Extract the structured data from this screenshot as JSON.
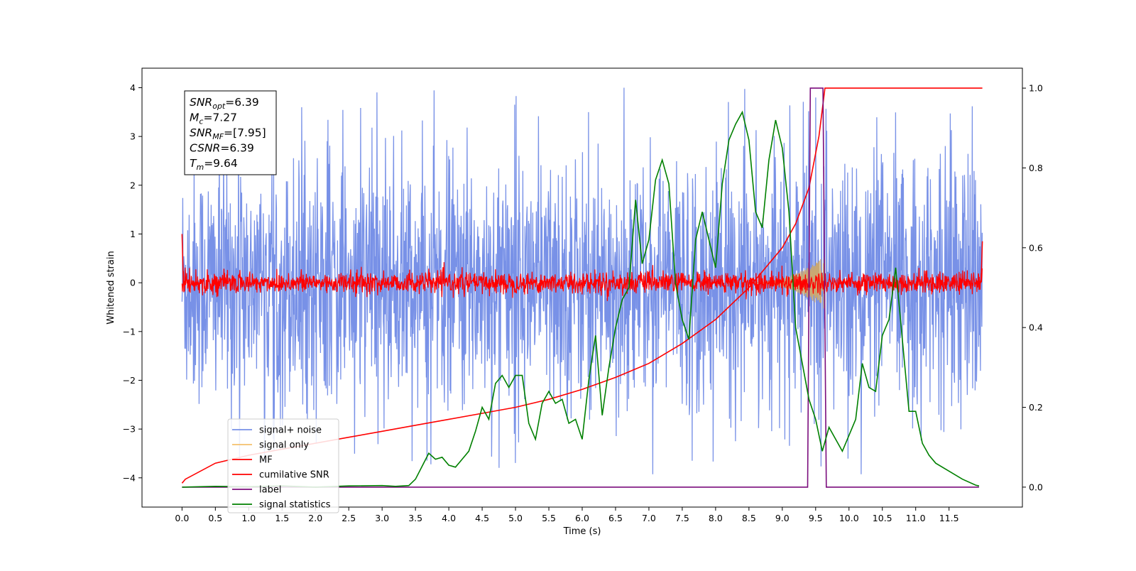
{
  "chart_data": {
    "type": "line",
    "xlabel": "Time (s)",
    "ylabel": "Whitened strain",
    "y2label": "",
    "xlim": [
      -0.6,
      12.6
    ],
    "ylim": [
      -4.6,
      4.4
    ],
    "y2lim": [
      -0.05,
      1.05
    ],
    "x_ticks": [
      "0.0",
      "0.5",
      "1.0",
      "1.5",
      "2.0",
      "2.5",
      "3.0",
      "3.5",
      "4.0",
      "4.5",
      "5.0",
      "5.5",
      "6.0",
      "6.5",
      "7.0",
      "7.5",
      "8.0",
      "8.5",
      "9.0",
      "9.5",
      "10.0",
      "10.5",
      "11.0",
      "11.5"
    ],
    "y_ticks": [
      "4",
      "3",
      "2",
      "1",
      "0",
      "−1",
      "−2",
      "−3",
      "−4"
    ],
    "y2_ticks": [
      "1.0",
      "0.8",
      "0.6",
      "0.4",
      "0.2",
      "0.0"
    ],
    "legend_position": "lower-left",
    "series": [
      {
        "name": "signal+ noise",
        "color": "#7891e7",
        "axis": "left",
        "style": "noise band",
        "t_range": [
          0,
          12
        ],
        "approx_abs_extreme": 4.0
      },
      {
        "name": "signal only",
        "color": "#f5c16d",
        "axis": "left",
        "style": "chirp envelope",
        "peak_time": 9.64,
        "peak_amplitude": 0.55
      },
      {
        "name": "MF",
        "color": "#ff0000",
        "axis": "left",
        "style": "noise band",
        "t_range": [
          0,
          12
        ],
        "approx_abs_extreme": 0.45
      },
      {
        "name": "cumilative SNR",
        "color": "#ff0000",
        "axis": "right",
        "x": [
          0.0,
          0.05,
          0.5,
          1.0,
          1.5,
          2.0,
          2.5,
          3.0,
          3.5,
          4.0,
          4.5,
          5.0,
          5.5,
          6.0,
          6.5,
          7.0,
          7.5,
          8.0,
          8.5,
          9.0,
          9.2,
          9.4,
          9.55,
          9.64,
          10.0,
          10.5,
          11.0,
          11.5,
          12.0
        ],
        "values": [
          0.01,
          0.02,
          0.06,
          0.08,
          0.095,
          0.11,
          0.125,
          0.14,
          0.155,
          0.17,
          0.185,
          0.2,
          0.22,
          0.245,
          0.275,
          0.31,
          0.36,
          0.42,
          0.5,
          0.6,
          0.66,
          0.75,
          0.88,
          1.0,
          1.0,
          1.0,
          1.0,
          1.0,
          1.0
        ]
      },
      {
        "name": "label",
        "color": "#7b0d7d",
        "axis": "right",
        "x": [
          0.0,
          9.38,
          9.42,
          9.61,
          9.66,
          11.95
        ],
        "values": [
          0.0,
          0.0,
          1.0,
          1.0,
          0.0,
          0.0
        ]
      },
      {
        "name": "signal statistics",
        "color": "#008000",
        "axis": "right",
        "x": [
          0.0,
          0.5,
          1.0,
          1.5,
          2.0,
          2.5,
          3.0,
          3.2,
          3.4,
          3.5,
          3.7,
          3.8,
          3.9,
          4.0,
          4.1,
          4.2,
          4.3,
          4.4,
          4.5,
          4.6,
          4.7,
          4.8,
          4.9,
          5.0,
          5.1,
          5.2,
          5.3,
          5.4,
          5.5,
          5.6,
          5.7,
          5.8,
          5.9,
          6.0,
          6.1,
          6.2,
          6.3,
          6.4,
          6.5,
          6.6,
          6.7,
          6.8,
          6.9,
          7.0,
          7.1,
          7.2,
          7.3,
          7.4,
          7.5,
          7.6,
          7.7,
          7.8,
          7.9,
          8.0,
          8.1,
          8.2,
          8.3,
          8.4,
          8.5,
          8.6,
          8.7,
          8.8,
          8.9,
          9.0,
          9.1,
          9.2,
          9.3,
          9.4,
          9.5,
          9.6,
          9.7,
          9.8,
          9.9,
          10.0,
          10.1,
          10.2,
          10.3,
          10.4,
          10.5,
          10.6,
          10.7,
          10.8,
          10.9,
          11.0,
          11.1,
          11.2,
          11.3,
          11.5,
          11.7,
          11.9,
          11.95
        ],
        "values": [
          0.0,
          0.002,
          0.001,
          0.003,
          0.0,
          0.003,
          0.004,
          0.002,
          0.004,
          0.02,
          0.085,
          0.07,
          0.075,
          0.055,
          0.05,
          0.07,
          0.09,
          0.14,
          0.2,
          0.17,
          0.26,
          0.28,
          0.25,
          0.28,
          0.28,
          0.16,
          0.12,
          0.21,
          0.24,
          0.21,
          0.22,
          0.16,
          0.17,
          0.12,
          0.27,
          0.38,
          0.18,
          0.3,
          0.4,
          0.47,
          0.5,
          0.72,
          0.56,
          0.62,
          0.77,
          0.82,
          0.76,
          0.51,
          0.42,
          0.37,
          0.62,
          0.69,
          0.62,
          0.55,
          0.76,
          0.87,
          0.91,
          0.94,
          0.87,
          0.69,
          0.65,
          0.82,
          0.92,
          0.85,
          0.69,
          0.4,
          0.31,
          0.22,
          0.17,
          0.09,
          0.15,
          0.12,
          0.09,
          0.13,
          0.17,
          0.31,
          0.25,
          0.24,
          0.38,
          0.42,
          0.55,
          0.37,
          0.19,
          0.19,
          0.11,
          0.08,
          0.06,
          0.04,
          0.02,
          0.005,
          0.003
        ]
      }
    ]
  },
  "info_box": {
    "lines": [
      {
        "base": "SNR",
        "sub": "opt",
        "rest": "=6.39"
      },
      {
        "base": "M",
        "sub": "c",
        "rest": "=7.27"
      },
      {
        "base": "SNR",
        "sub": "MF",
        "rest": "=[7.95]"
      },
      {
        "base": "CSNR",
        "sub": "",
        "rest": "=6.39"
      },
      {
        "base": "T",
        "sub": "m",
        "rest": "=9.64"
      }
    ]
  }
}
